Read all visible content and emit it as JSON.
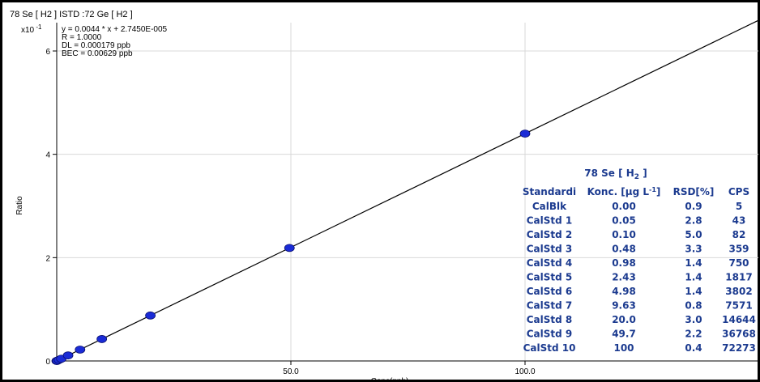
{
  "chart_title": "78 Se [ H2 ] ISTD :72 Ge [ H2 ]",
  "chart_data": {
    "type": "scatter",
    "title": "78 Se [ H2 ] ISTD :72 Ge [ H2 ]",
    "xlabel": "Conc(ppb)",
    "ylabel": "Ratio",
    "y_multiplier_label": "x10",
    "y_multiplier_exp": "-1",
    "xlim": [
      0,
      100.0
    ],
    "ylim": [
      0,
      0.6
    ],
    "x_ticks": [
      {
        "value": 50.0,
        "label": "50.0"
      },
      {
        "value": 100.0,
        "label": "100.0"
      }
    ],
    "y_ticks": [
      {
        "value": 0.0,
        "label": "0"
      },
      {
        "value": 0.2,
        "label": "2"
      },
      {
        "value": 0.4,
        "label": "4"
      },
      {
        "value": 0.6,
        "label": "6"
      }
    ],
    "grid": true,
    "fit": {
      "slope": 0.0044,
      "intercept": 2.745e-05
    },
    "annotations": [
      "y = 0.0044 * x  + 2.7450E-005",
      "R = 1.0000",
      "DL = 0.000179 ppb",
      "BEC = 0.00629 ppb"
    ],
    "series": [
      {
        "x": [
          0.0,
          0.05,
          0.1,
          0.48,
          0.98,
          2.43,
          4.98,
          9.63,
          20.0,
          49.7,
          100
        ],
        "y": [
          0.0,
          0.0002,
          0.0004,
          0.0021,
          0.0043,
          0.0107,
          0.0219,
          0.0424,
          0.088,
          0.2187,
          0.44
        ]
      }
    ],
    "table": {
      "title": "78  Se  [ H",
      "title_sub": "2",
      "title_end": " ]",
      "headers": [
        "Standardi",
        "Konc. [µg L",
        "RSD[%]",
        "CPS"
      ],
      "konc_sup": "-1",
      "konc_end": "]",
      "rows": [
        [
          "CalBlk",
          "0.00",
          "0.9",
          "5"
        ],
        [
          "CalStd 1",
          "0.05",
          "2.8",
          "43"
        ],
        [
          "CalStd 2",
          "0.10",
          "5.0",
          "82"
        ],
        [
          "CalStd 3",
          "0.48",
          "3.3",
          "359"
        ],
        [
          "CalStd 4",
          "0.98",
          "1.4",
          "750"
        ],
        [
          "CalStd 5",
          "2.43",
          "1.4",
          "1817"
        ],
        [
          "CalStd 6",
          "4.98",
          "1.4",
          "3802"
        ],
        [
          "CalStd 7",
          "9.63",
          "0.8",
          "7571"
        ],
        [
          "CalStd 8",
          "20.0",
          "3.0",
          "14644"
        ],
        [
          "CalStd 9",
          "49.7",
          "2.2",
          "36768"
        ],
        [
          "CalStd 10",
          "100",
          "0.4",
          "72273"
        ]
      ]
    },
    "colors": {
      "point": "#1a2bd6",
      "fit_line": "#000000",
      "grid": "#d8d8d8",
      "table_text": "#1b3a8f"
    }
  }
}
